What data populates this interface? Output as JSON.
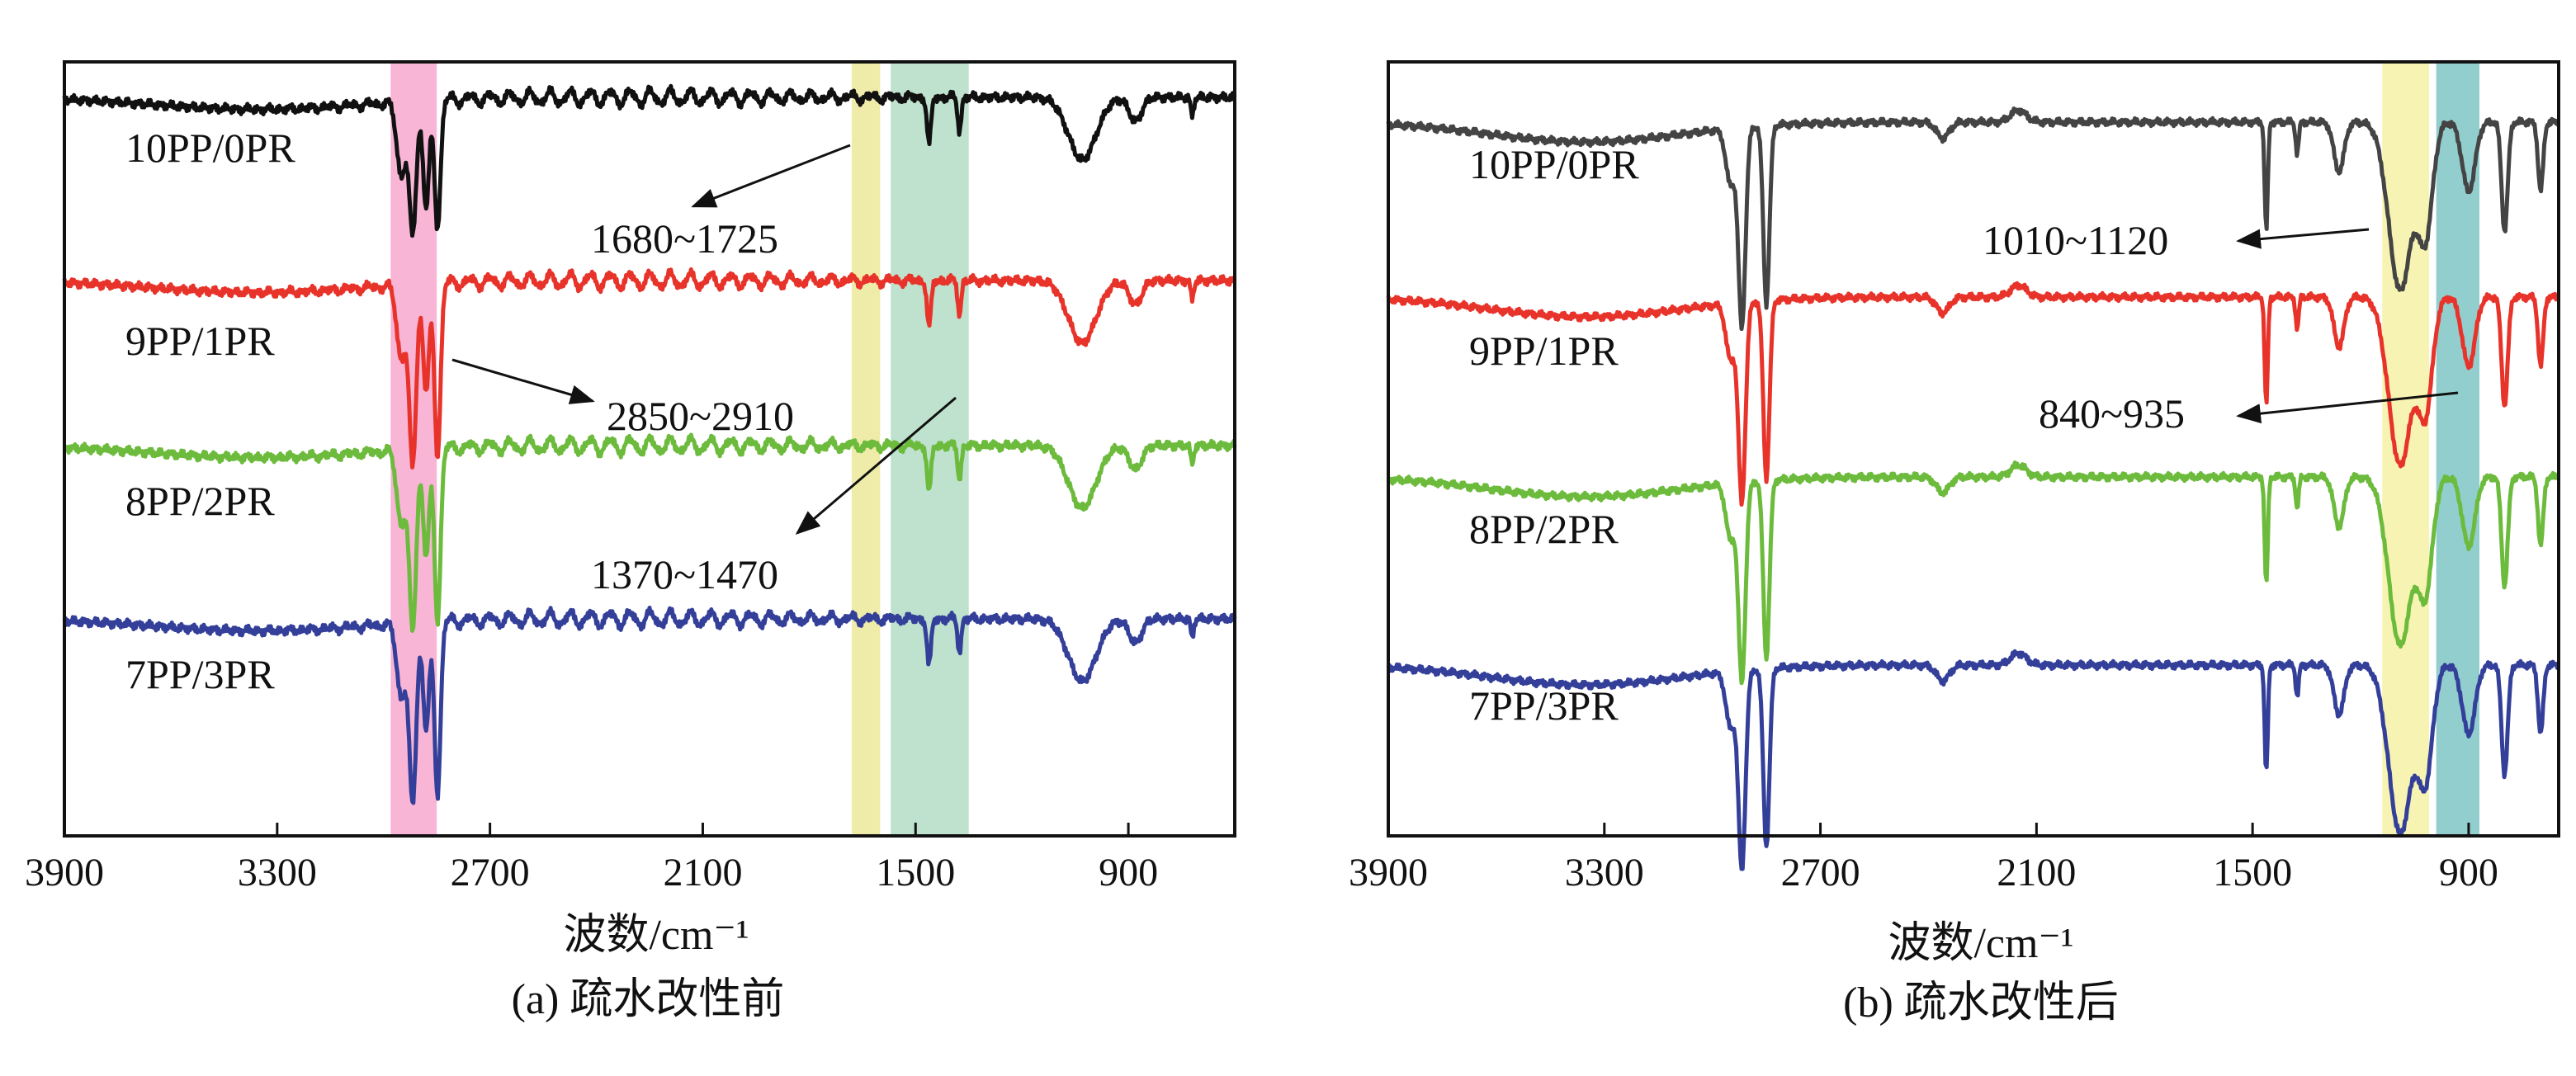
{
  "chart_data": [
    {
      "panel": "a",
      "type": "line",
      "caption": "(a) 疏水改性前",
      "xlabel": "波数/cm⁻¹",
      "ylabel": "",
      "xlim": [
        3900,
        600
      ],
      "xticks": [
        3900,
        3300,
        2700,
        2100,
        1500,
        900
      ],
      "x_tick_labels": [
        "3900",
        "3300",
        "2700",
        "2100",
        "1500",
        "900"
      ],
      "series": [
        {
          "name": "10PP/0PR",
          "color": "#111111",
          "offset": 3.0,
          "depth": 0.55
        },
        {
          "name": "9PP/1PR",
          "color": "#e8332a",
          "offset": 2.0,
          "depth": 0.75
        },
        {
          "name": "8PP/2PR",
          "color": "#6cbb3c",
          "offset": 1.0,
          "depth": 0.75
        },
        {
          "name": "7PP/3PR",
          "color": "#333f99",
          "offset": 0.0,
          "depth": 0.75
        }
      ],
      "bands": [
        {
          "range": [
            2850,
            2980
          ],
          "color": "#f7a8cf"
        },
        {
          "range": [
            1600,
            1680
          ],
          "color": "#ece79a"
        },
        {
          "range": [
            1350,
            1570
          ],
          "color": "#b3ddc4"
        }
      ],
      "annotations": [
        {
          "text": "1680~1725"
        },
        {
          "text": "2850~2910"
        },
        {
          "text": "1370~1470"
        }
      ]
    },
    {
      "panel": "b",
      "type": "line",
      "caption": "(b) 疏水改性后",
      "xlabel": "波数/cm⁻¹",
      "ylabel": "",
      "xlim": [
        3900,
        650
      ],
      "xticks": [
        3900,
        3300,
        2700,
        2100,
        1500,
        900
      ],
      "x_tick_labels": [
        "3900",
        "3300",
        "2700",
        "2100",
        "1500",
        "900"
      ],
      "series": [
        {
          "name": "10PP/0PR",
          "color": "#444444",
          "offset": 3.0,
          "depth": 1.0
        },
        {
          "name": "9PP/1PR",
          "color": "#e8332a",
          "offset": 2.0,
          "depth": 1.0
        },
        {
          "name": "8PP/2PR",
          "color": "#6cbb3c",
          "offset": 1.0,
          "depth": 1.0
        },
        {
          "name": "7PP/3PR",
          "color": "#333f99",
          "offset": 0.0,
          "depth": 1.0
        }
      ],
      "bands": [
        {
          "range": [
            1010,
            1140
          ],
          "color": "#f6f2a6"
        },
        {
          "range": [
            870,
            990
          ],
          "color": "#7fc6c6"
        }
      ],
      "annotations": [
        {
          "text": "1010~1120"
        },
        {
          "text": "840~935"
        }
      ]
    }
  ]
}
